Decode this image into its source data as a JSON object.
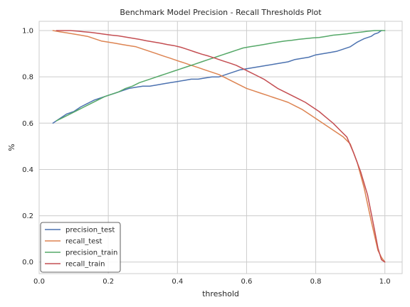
{
  "chart_data": {
    "type": "line",
    "title": "Benchmark Model Precision - Recall Thresholds Plot",
    "xlabel": "threshold",
    "ylabel": "%",
    "xlim": [
      0.0,
      1.05
    ],
    "ylim": [
      -0.05,
      1.04
    ],
    "xticks": [
      0.0,
      0.2,
      0.4,
      0.6,
      0.8,
      1.0
    ],
    "xtick_labels": [
      "0.0",
      "0.2",
      "0.4",
      "0.6",
      "0.8",
      "1.0"
    ],
    "yticks": [
      0.0,
      0.2,
      0.4,
      0.6,
      0.8,
      1.0
    ],
    "ytick_labels": [
      "0.0",
      "0.2",
      "0.4",
      "0.6",
      "0.8",
      "1.0"
    ],
    "grid": true,
    "legend_position": "lower-left",
    "series": [
      {
        "name": "precision_test",
        "color": "#4c72b0",
        "x": [
          0.04,
          0.06,
          0.08,
          0.1,
          0.12,
          0.14,
          0.16,
          0.18,
          0.2,
          0.22,
          0.24,
          0.26,
          0.28,
          0.3,
          0.32,
          0.34,
          0.36,
          0.38,
          0.4,
          0.42,
          0.44,
          0.46,
          0.48,
          0.5,
          0.52,
          0.54,
          0.56,
          0.58,
          0.6,
          0.62,
          0.64,
          0.66,
          0.68,
          0.7,
          0.72,
          0.74,
          0.76,
          0.78,
          0.8,
          0.82,
          0.84,
          0.86,
          0.88,
          0.9,
          0.92,
          0.94,
          0.96,
          0.97,
          0.98,
          0.99
        ],
        "y": [
          0.6,
          0.62,
          0.64,
          0.65,
          0.67,
          0.685,
          0.7,
          0.71,
          0.72,
          0.73,
          0.74,
          0.75,
          0.755,
          0.76,
          0.76,
          0.765,
          0.77,
          0.775,
          0.78,
          0.785,
          0.79,
          0.79,
          0.795,
          0.8,
          0.8,
          0.81,
          0.82,
          0.83,
          0.835,
          0.84,
          0.845,
          0.85,
          0.855,
          0.86,
          0.865,
          0.875,
          0.88,
          0.885,
          0.895,
          0.9,
          0.905,
          0.91,
          0.92,
          0.93,
          0.95,
          0.965,
          0.975,
          0.985,
          0.99,
          1.0
        ]
      },
      {
        "name": "recall_test",
        "color": "#dd8452",
        "x": [
          0.04,
          0.06,
          0.08,
          0.1,
          0.12,
          0.14,
          0.16,
          0.18,
          0.2,
          0.22,
          0.24,
          0.26,
          0.28,
          0.3,
          0.32,
          0.34,
          0.36,
          0.38,
          0.4,
          0.42,
          0.44,
          0.46,
          0.48,
          0.5,
          0.52,
          0.54,
          0.56,
          0.58,
          0.6,
          0.62,
          0.64,
          0.66,
          0.68,
          0.7,
          0.72,
          0.74,
          0.76,
          0.78,
          0.8,
          0.82,
          0.84,
          0.86,
          0.88,
          0.9,
          0.92,
          0.94,
          0.96,
          0.98,
          0.99,
          1.0
        ],
        "y": [
          1.0,
          0.995,
          0.99,
          0.985,
          0.98,
          0.975,
          0.965,
          0.955,
          0.95,
          0.945,
          0.94,
          0.935,
          0.93,
          0.92,
          0.91,
          0.9,
          0.89,
          0.88,
          0.87,
          0.86,
          0.85,
          0.84,
          0.83,
          0.82,
          0.81,
          0.795,
          0.78,
          0.765,
          0.75,
          0.74,
          0.73,
          0.72,
          0.71,
          0.7,
          0.69,
          0.675,
          0.66,
          0.64,
          0.62,
          0.6,
          0.58,
          0.56,
          0.54,
          0.51,
          0.43,
          0.32,
          0.18,
          0.05,
          0.02,
          0.0
        ]
      },
      {
        "name": "precision_train",
        "color": "#55a868",
        "x": [
          0.05,
          0.07,
          0.09,
          0.11,
          0.13,
          0.15,
          0.17,
          0.19,
          0.21,
          0.23,
          0.25,
          0.27,
          0.29,
          0.31,
          0.33,
          0.35,
          0.37,
          0.39,
          0.41,
          0.43,
          0.45,
          0.47,
          0.49,
          0.51,
          0.53,
          0.55,
          0.57,
          0.59,
          0.61,
          0.63,
          0.65,
          0.67,
          0.69,
          0.71,
          0.73,
          0.75,
          0.77,
          0.79,
          0.81,
          0.83,
          0.85,
          0.87,
          0.89,
          0.91,
          0.93,
          0.95,
          0.97,
          0.99,
          1.0
        ],
        "y": [
          0.61,
          0.625,
          0.64,
          0.655,
          0.67,
          0.685,
          0.7,
          0.715,
          0.725,
          0.735,
          0.75,
          0.76,
          0.775,
          0.785,
          0.795,
          0.805,
          0.815,
          0.825,
          0.835,
          0.845,
          0.855,
          0.865,
          0.875,
          0.885,
          0.895,
          0.905,
          0.915,
          0.925,
          0.93,
          0.935,
          0.94,
          0.945,
          0.95,
          0.955,
          0.958,
          0.962,
          0.965,
          0.968,
          0.97,
          0.975,
          0.98,
          0.983,
          0.986,
          0.99,
          0.993,
          0.997,
          1.0,
          1.0,
          1.0
        ]
      },
      {
        "name": "recall_train",
        "color": "#c44e52",
        "x": [
          0.05,
          0.07,
          0.09,
          0.11,
          0.13,
          0.15,
          0.17,
          0.19,
          0.21,
          0.23,
          0.25,
          0.27,
          0.29,
          0.31,
          0.33,
          0.35,
          0.37,
          0.39,
          0.41,
          0.43,
          0.45,
          0.47,
          0.49,
          0.51,
          0.53,
          0.55,
          0.57,
          0.59,
          0.61,
          0.63,
          0.65,
          0.67,
          0.69,
          0.71,
          0.73,
          0.75,
          0.77,
          0.79,
          0.81,
          0.83,
          0.85,
          0.87,
          0.89,
          0.91,
          0.93,
          0.95,
          0.97,
          0.98,
          0.99,
          1.0
        ],
        "y": [
          1.0,
          1.0,
          1.0,
          0.998,
          0.995,
          0.992,
          0.988,
          0.984,
          0.98,
          0.977,
          0.972,
          0.967,
          0.962,
          0.956,
          0.951,
          0.946,
          0.94,
          0.935,
          0.928,
          0.918,
          0.908,
          0.898,
          0.89,
          0.88,
          0.87,
          0.86,
          0.85,
          0.835,
          0.82,
          0.805,
          0.79,
          0.77,
          0.75,
          0.735,
          0.72,
          0.705,
          0.69,
          0.67,
          0.65,
          0.625,
          0.6,
          0.57,
          0.54,
          0.47,
          0.39,
          0.29,
          0.14,
          0.06,
          0.01,
          0.0
        ]
      }
    ]
  }
}
